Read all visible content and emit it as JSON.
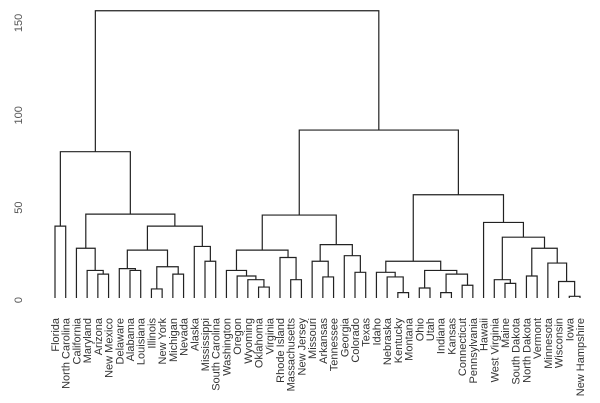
{
  "chart_data": {
    "type": "dendrogram",
    "title": "",
    "xlabel": "",
    "ylabel": "",
    "ylim": [
      0,
      157
    ],
    "yticks": [
      0,
      50,
      100,
      150
    ],
    "grid": false,
    "line_color": "#222222",
    "leaves": [
      "Florida",
      "North Carolina",
      "California",
      "Maryland",
      "Arizona",
      "New Mexico",
      "Delaware",
      "Alabama",
      "Louisiana",
      "Illinois",
      "New York",
      "Michigan",
      "Nevada",
      "Alaska",
      "Mississippi",
      "South Carolina",
      "Washington",
      "Oregon",
      "Wyoming",
      "Oklahoma",
      "Virginia",
      "Rhode Island",
      "Massachusetts",
      "New Jersey",
      "Missouri",
      "Arkansas",
      "Tennessee",
      "Georgia",
      "Colorado",
      "Texas",
      "Idaho",
      "Nebraska",
      "Kentucky",
      "Montana",
      "Ohio",
      "Utah",
      "Indiana",
      "Kansas",
      "Connecticut",
      "Pennsylvania",
      "Hawaii",
      "West Virginia",
      "Maine",
      "South Dakota",
      "North Dakota",
      "Vermont",
      "Minnesota",
      "Wisconsin",
      "Iowa",
      "New Hampshire"
    ],
    "tree": [
      156.6,
      [
        80.3,
        [
          40,
          "Florida",
          "North Carolina"
        ],
        [
          46.5,
          [
            28,
            "California",
            [
              16,
              "Maryland",
              [
                14,
                "Arizona",
                "New Mexico"
              ]
            ]
          ],
          [
            40,
            [
              27,
              [
                17,
                "Delaware",
                [
                  16,
                  "Alabama",
                  "Louisiana"
                ]
              ],
              [
                18,
                [
                  6,
                  "Illinois",
                  "New York"
                ],
                [
                  14,
                  "Michigan",
                  "Nevada"
                ]
              ]
            ],
            [
              29,
              "Alaska",
              [
                21,
                "Mississippi",
                "South Carolina"
              ]
            ]
          ]
        ]
      ],
      [
        92,
        [
          46,
          [
            27,
            [
              16,
              "Washington",
              [
                13,
                "Oregon",
                [
                  11,
                  "Wyoming",
                  [
                    7,
                    "Oklahoma",
                    "Virginia"
                  ]
                ]
              ]
            ],
            [
              23,
              "Rhode Island",
              [
                11,
                "Massachusetts",
                "New Jersey"
              ]
            ]
          ],
          [
            30,
            [
              21,
              "Missouri",
              [
                12.5,
                "Arkansas",
                "Tennessee"
              ]
            ],
            [
              24,
              "Georgia",
              [
                15,
                "Colorado",
                "Texas"
              ]
            ]
          ]
        ],
        [
          57,
          [
            21,
            [
              15,
              "Idaho",
              [
                12.5,
                "Nebraska",
                [
                  4,
                  "Kentucky",
                  "Montana"
                ]
              ]
            ],
            [
              16,
              [
                6.5,
                "Ohio",
                "Utah"
              ],
              [
                14,
                [
                  4,
                  "Indiana",
                  "Kansas"
                ],
                [
                  8,
                  "Connecticut",
                  "Pennsylvania"
                ]
              ]
            ]
          ],
          [
            42,
            "Hawaii",
            [
              34,
              [
                11,
                "West Virginia",
                [
                  9,
                  "Maine",
                  "South Dakota"
                ]
              ],
              [
                28,
                [
                  13,
                  "North Dakota",
                  "Vermont"
                ],
                [
                  20,
                  "Minnesota",
                  [
                    10,
                    "Wisconsin",
                    [
                      2,
                      "Iowa",
                      "New Hampshire"
                    ]
                  ]
                ]
              ]
            ]
          ]
        ]
      ]
    ]
  }
}
